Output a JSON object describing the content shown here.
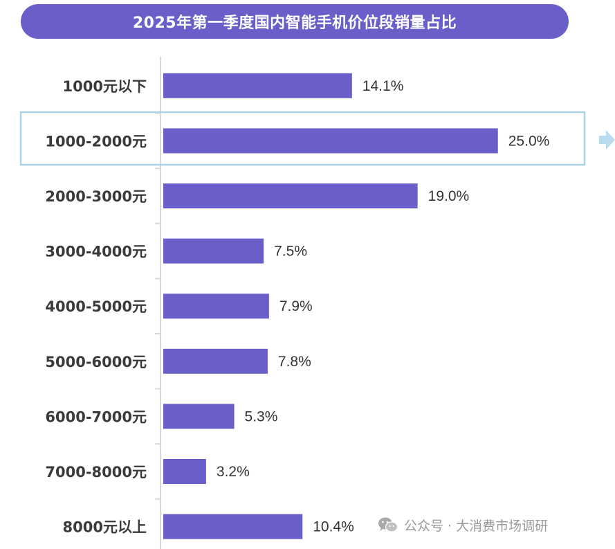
{
  "title": "2025年第一季度国内智能手机价位段销量占比",
  "watermark": "公众号 · 大消费市场调研",
  "colors": {
    "bar": "#6a5fc8",
    "title_bg": "#6a5fc8",
    "highlight_border": "#a9d4e8",
    "axis": "#d8d8d8"
  },
  "chart_data": {
    "type": "bar",
    "orientation": "horizontal",
    "categories": [
      "1000元以下",
      "1000-2000元",
      "2000-3000元",
      "3000-4000元",
      "4000-5000元",
      "5000-6000元",
      "6000-7000元",
      "7000-8000元",
      "8000元以上"
    ],
    "values": [
      14.1,
      25.0,
      19.0,
      7.5,
      7.9,
      7.8,
      5.3,
      3.2,
      10.4
    ],
    "value_labels": [
      "14.1%",
      "25.0%",
      "19.0%",
      "7.5%",
      "7.9%",
      "7.8%",
      "5.3%",
      "3.2%",
      "10.4%"
    ],
    "title": "2025年第一季度国内智能手机价位段销量占比",
    "xlabel": "",
    "ylabel": "",
    "highlighted_category": "1000-2000元",
    "grid": false,
    "legend": "none"
  }
}
